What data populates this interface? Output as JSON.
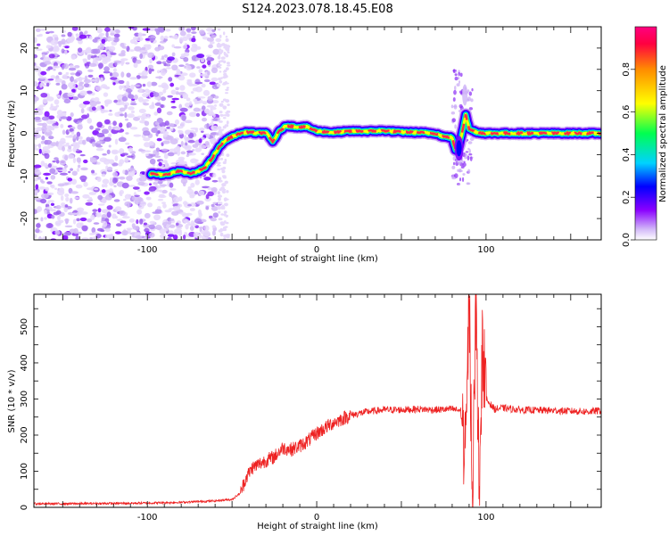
{
  "title": "S124.2023.078.18.45.E08",
  "chart_data": [
    {
      "type": "heatmap",
      "xlabel": "Height of straight line (km)",
      "ylabel": "Frequency (Hz)",
      "xlim": [
        -167,
        168
      ],
      "ylim": [
        -25,
        25
      ],
      "xticks": [
        -100,
        0,
        100
      ],
      "yticks": [
        -20,
        -10,
        0,
        10,
        20
      ],
      "colorbar": {
        "label": "Normalized spectral amplitude",
        "range": [
          0,
          1
        ],
        "ticks": [
          "0.0",
          "0.2",
          "0.4",
          "0.6",
          "0.8"
        ],
        "colors": [
          "#ffffff",
          "#c9a9f5",
          "#7a00ff",
          "#0000ff",
          "#00c8ff",
          "#00ff60",
          "#ffff00",
          "#ff9000",
          "#ff0050",
          "#ff0080"
        ]
      },
      "ridge": {
        "name": "frequency trace",
        "x": [
          -98,
          -90,
          -85,
          -80,
          -75,
          -70,
          -66,
          -62,
          -58,
          -55,
          -50,
          -45,
          -40,
          -35,
          -30,
          -26,
          -22,
          -18,
          -12,
          -6,
          0,
          10,
          20,
          30,
          40,
          50,
          60,
          70,
          75,
          80,
          82,
          84,
          86,
          88,
          90,
          95,
          100,
          120,
          140,
          168
        ],
        "y": [
          -9.5,
          -9.8,
          -9.2,
          -8.8,
          -9.5,
          -9.0,
          -8.0,
          -6.0,
          -3.5,
          -2.0,
          -0.8,
          0.0,
          0.3,
          0.0,
          0.2,
          -2.0,
          0.5,
          1.8,
          1.5,
          1.5,
          0.5,
          0.2,
          0.5,
          0.5,
          0.6,
          0.3,
          0.2,
          0.0,
          -0.8,
          -1.0,
          -4.0,
          -3.0,
          0.5,
          4.5,
          1.0,
          0.2,
          0.0,
          0.0,
          0.0,
          0.0
        ]
      }
    },
    {
      "type": "line",
      "xlabel": "Height of straight line (km)",
      "ylabel": "SNR (10 * v/v)",
      "xlim": [
        -167,
        168
      ],
      "ylim": [
        0,
        590
      ],
      "xticks": [
        -100,
        0,
        100
      ],
      "yticks": [
        0,
        100,
        200,
        300,
        400,
        500
      ],
      "color": "#ee2222",
      "series": [
        {
          "x": [
            -167,
            -150,
            -120,
            -100,
            -80,
            -60,
            -50,
            -45,
            -42,
            -38,
            -30,
            -25,
            -20,
            -15,
            -10,
            -5,
            0,
            5,
            10,
            20,
            30,
            40,
            50,
            60,
            70,
            80,
            85,
            88,
            90,
            92,
            94,
            96,
            98,
            100,
            105,
            110,
            120,
            140,
            160,
            168
          ],
          "y": [
            10,
            10,
            11,
            12,
            14,
            18,
            22,
            40,
            80,
            110,
            130,
            140,
            165,
            160,
            170,
            185,
            205,
            220,
            235,
            255,
            265,
            270,
            270,
            272,
            270,
            272,
            268,
            140,
            580,
            40,
            560,
            60,
            460,
            300,
            272,
            275,
            270,
            268,
            265,
            268
          ]
        }
      ]
    }
  ]
}
